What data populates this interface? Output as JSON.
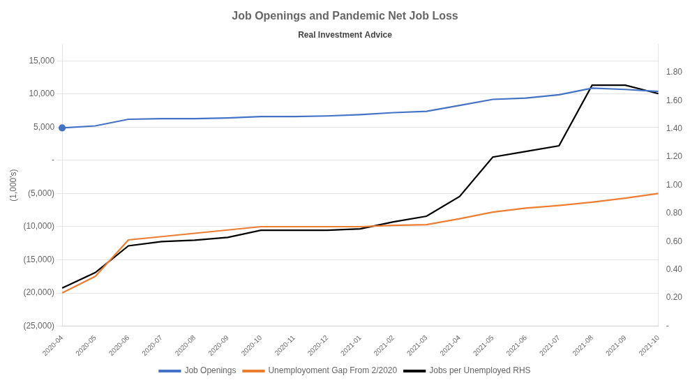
{
  "chart_data": {
    "type": "line",
    "title": "Job Openings and Pandemic Net Job Loss",
    "subtitle": "Real Investment Advice",
    "ylabel": "(1,000's)",
    "categories": [
      "2020-04",
      "2020-05",
      "2020-06",
      "2020-07",
      "2020-08",
      "2020-09",
      "2020-10",
      "2020-11",
      "2020-12",
      "2021-01",
      "2021-02",
      "2021-03",
      "2021-04",
      "2021-05",
      "2021-06",
      "2021-07",
      "2021-08",
      "2021-09",
      "2021-10"
    ],
    "series": [
      {
        "name": "Job Openings",
        "color": "#4472C4",
        "marker": "circle",
        "values": [
          4900,
          5200,
          6200,
          6300,
          6300,
          6400,
          6600,
          6600,
          6700,
          6900,
          7200,
          7400,
          8300,
          9200,
          9400,
          9900,
          10900,
          10700,
          10400
        ]
      },
      {
        "name": "Unemployoment Gap From 2/2020",
        "color": "#ED7D31",
        "values": [
          -20000,
          -17500,
          -12000,
          -11500,
          -11000,
          -10500,
          -10000,
          -10000,
          -10000,
          -10000,
          -9800,
          -9700,
          -8800,
          -7800,
          -7200,
          -6800,
          -6300,
          -5700,
          -5000
        ]
      },
      {
        "name": "Jobs per Unemployed RHS",
        "color": "#000000",
        "axis": "y2",
        "values": [
          0.27,
          0.38,
          0.57,
          0.6,
          0.61,
          0.63,
          0.68,
          0.68,
          0.68,
          0.69,
          0.74,
          0.78,
          0.92,
          1.2,
          1.24,
          1.28,
          1.71,
          1.71,
          1.65
        ]
      }
    ],
    "ylim": [
      -25000,
      17500
    ],
    "yticks": [
      {
        "value": 15000,
        "label": "15,000"
      },
      {
        "value": 10000,
        "label": "10,000"
      },
      {
        "value": 5000,
        "label": "5,000"
      },
      {
        "value": 0,
        "label": "-"
      },
      {
        "value": -5000,
        "label": "(5,000)"
      },
      {
        "value": -10000,
        "label": "(10,000)"
      },
      {
        "value": -15000,
        "label": "(15,000)"
      },
      {
        "value": -20000,
        "label": "(20,000)"
      },
      {
        "value": -25000,
        "label": "(25,000)"
      }
    ],
    "y2lim": [
      0.0,
      2.0
    ],
    "y2ticks": [
      {
        "value": 1.8,
        "label": "1.80"
      },
      {
        "value": 1.6,
        "label": "1.60"
      },
      {
        "value": 1.4,
        "label": "1.40"
      },
      {
        "value": 1.2,
        "label": "1.20"
      },
      {
        "value": 1.0,
        "label": "1.00"
      },
      {
        "value": 0.8,
        "label": "0.80"
      },
      {
        "value": 0.6,
        "label": "0.60"
      },
      {
        "value": 0.4,
        "label": "0.40"
      },
      {
        "value": 0.2,
        "label": "0.20"
      },
      {
        "value": 0.0,
        "label": "-"
      }
    ],
    "grid": true,
    "legend": "bottom"
  }
}
